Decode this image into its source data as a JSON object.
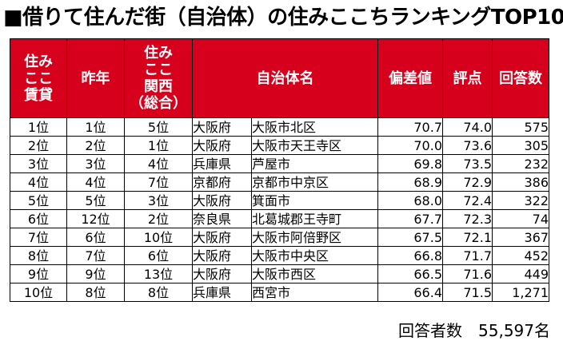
{
  "title": "■借りて住んだ街（自治体）の住みここちランキングTOP10",
  "headers": {
    "rank_rent": [
      "住み",
      "ここ",
      "賃貸"
    ],
    "last_year": "昨年",
    "rank_kansai": [
      "住み",
      "ここ",
      "関西",
      "（総合）"
    ],
    "municipality": "自治体名",
    "deviation": "偏差値",
    "score": "評点",
    "responses": "回答数"
  },
  "rows": [
    {
      "rank": "1位",
      "last_year": "1位",
      "kansai": "5位",
      "pref": "大阪府",
      "city": "大阪市北区",
      "deviation": "70.7",
      "score": "74.0",
      "responses": "575"
    },
    {
      "rank": "2位",
      "last_year": "2位",
      "kansai": "1位",
      "pref": "大阪府",
      "city": "大阪市天王寺区",
      "deviation": "70.0",
      "score": "73.6",
      "responses": "305"
    },
    {
      "rank": "3位",
      "last_year": "3位",
      "kansai": "4位",
      "pref": "兵庫県",
      "city": "芦屋市",
      "deviation": "69.8",
      "score": "73.5",
      "responses": "232"
    },
    {
      "rank": "4位",
      "last_year": "4位",
      "kansai": "7位",
      "pref": "京都府",
      "city": "京都市中京区",
      "deviation": "68.9",
      "score": "72.9",
      "responses": "386"
    },
    {
      "rank": "5位",
      "last_year": "5位",
      "kansai": "3位",
      "pref": "大阪府",
      "city": "箕面市",
      "deviation": "68.0",
      "score": "72.4",
      "responses": "322"
    },
    {
      "rank": "6位",
      "last_year": "12位",
      "kansai": "2位",
      "pref": "奈良県",
      "city": "北葛城郡王寺町",
      "deviation": "67.7",
      "score": "72.3",
      "responses": "74"
    },
    {
      "rank": "7位",
      "last_year": "6位",
      "kansai": "10位",
      "pref": "大阪府",
      "city": "大阪市阿倍野区",
      "deviation": "67.5",
      "score": "72.1",
      "responses": "367"
    },
    {
      "rank": "8位",
      "last_year": "7位",
      "kansai": "6位",
      "pref": "大阪府",
      "city": "大阪市中央区",
      "deviation": "66.8",
      "score": "71.7",
      "responses": "452"
    },
    {
      "rank": "9位",
      "last_year": "9位",
      "kansai": "13位",
      "pref": "大阪府",
      "city": "大阪市西区",
      "deviation": "66.5",
      "score": "71.6",
      "responses": "449"
    },
    {
      "rank": "10位",
      "last_year": "8位",
      "kansai": "8位",
      "pref": "兵庫県",
      "city": "西宮市",
      "deviation": "66.4",
      "score": "71.5",
      "responses": "1,271"
    }
  ],
  "footer": "回答者数　55,597名",
  "colors": {
    "header_bg": "#d6001c",
    "header_text": "#ffffff"
  }
}
